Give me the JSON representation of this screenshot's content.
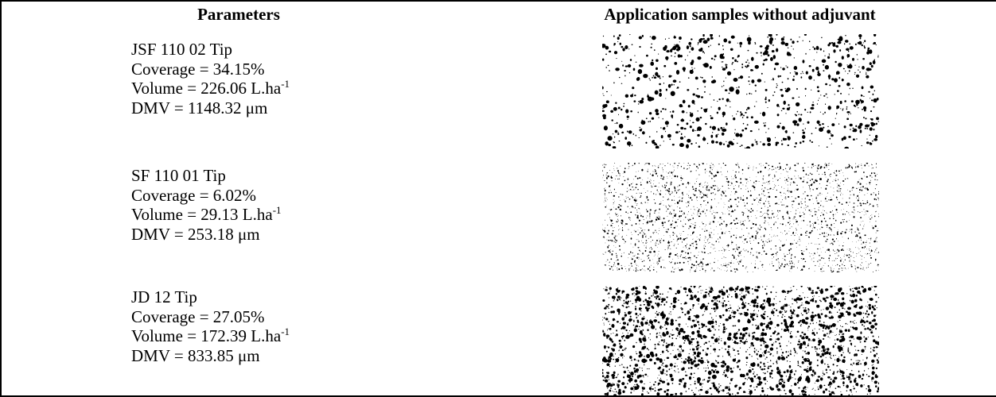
{
  "table": {
    "header": [
      "Parameters",
      "Application samples without adjuvant"
    ],
    "rows": [
      {
        "tip": "JSF 110 02 Tip",
        "coverage": "Coverage = 34.15%",
        "volume": {
          "text": "Volume = 226.06 L.ha",
          "sup": "-1"
        },
        "dmv": "DMV = 1148.32 μm"
      },
      {
        "tip": "SF 110 01 Tip",
        "coverage": "Coverage = 6.02%",
        "volume": {
          "text": "Volume = 29.13 L.ha",
          "sup": "-1"
        },
        "dmv": "DMV = 253.18 μm"
      },
      {
        "tip": "JD 12 Tip",
        "coverage": "Coverage = 27.05%",
        "volume": {
          "text": "Volume = 172.39 L.ha",
          "sup": "-1"
        },
        "dmv": "DMV = 833.85 μm"
      }
    ]
  }
}
